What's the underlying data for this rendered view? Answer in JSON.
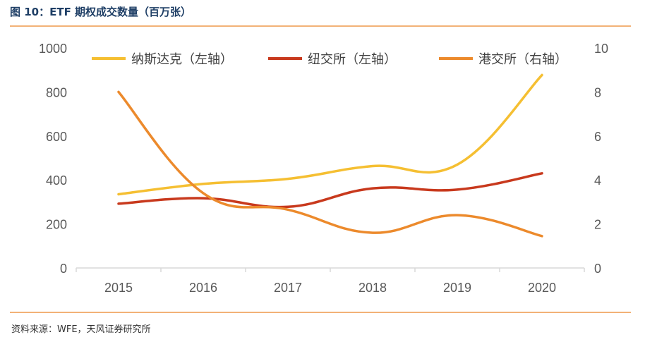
{
  "header": {
    "title": "图 10：ETF 期权成交数量（百万张）"
  },
  "footer": {
    "source": "资料来源：WFE，天风证券研究所"
  },
  "colors": {
    "rule": "#f2b277",
    "title": "#1f3f66"
  },
  "chart_data": {
    "type": "line",
    "title": "图 10：ETF 期权成交数量（百万张）",
    "x": [
      "2015",
      "2016",
      "2017",
      "2018",
      "2019",
      "2020"
    ],
    "ylim_left": [
      0,
      1000
    ],
    "yticks_left": [
      "0",
      "200",
      "400",
      "600",
      "800",
      "1000"
    ],
    "ylim_right": [
      0,
      10
    ],
    "yticks_right": [
      "0",
      "2",
      "4",
      "6",
      "8",
      "10"
    ],
    "grid": false,
    "legend_position": "top",
    "series": [
      {
        "name": "纳斯达克（左轴）",
        "axis": "left",
        "color": "#f5bf32",
        "values": [
          335,
          382,
          405,
          463,
          470,
          877
        ]
      },
      {
        "name": "纽交所（左轴）",
        "axis": "left",
        "color": "#c8391d",
        "values": [
          292,
          317,
          278,
          362,
          356,
          430
        ]
      },
      {
        "name": "港交所（右轴）",
        "axis": "right",
        "color": "#ec8a2c",
        "values": [
          8.0,
          3.4,
          2.65,
          1.6,
          2.4,
          1.45
        ]
      }
    ]
  }
}
